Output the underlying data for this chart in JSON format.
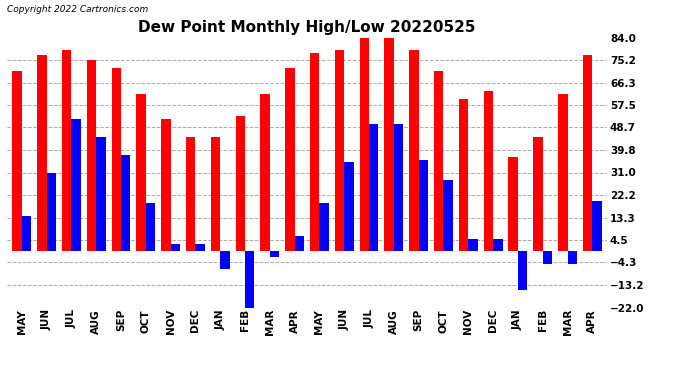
{
  "title": "Dew Point Monthly High/Low 20220525",
  "copyright": "Copyright 2022 Cartronics.com",
  "months": [
    "MAY",
    "JUN",
    "JUL",
    "AUG",
    "SEP",
    "OCT",
    "NOV",
    "DEC",
    "JAN",
    "FEB",
    "MAR",
    "APR",
    "MAY",
    "JUN",
    "JUL",
    "AUG",
    "SEP",
    "OCT",
    "NOV",
    "DEC",
    "JAN",
    "FEB",
    "MAR",
    "APR"
  ],
  "high": [
    71.0,
    77.0,
    79.0,
    75.0,
    72.0,
    62.0,
    52.0,
    45.0,
    45.0,
    53.0,
    62.0,
    72.0,
    78.0,
    79.0,
    84.0,
    84.0,
    79.0,
    71.0,
    60.0,
    63.0,
    37.0,
    45.0,
    62.0,
    77.0
  ],
  "low": [
    14.0,
    31.0,
    52.0,
    45.0,
    38.0,
    19.0,
    3.0,
    3.0,
    -7.0,
    -22.0,
    -2.0,
    6.0,
    19.0,
    35.0,
    50.0,
    50.0,
    36.0,
    28.0,
    5.0,
    5.0,
    -15.0,
    -5.0,
    -5.0,
    20.0
  ],
  "yticks": [
    84.0,
    75.2,
    66.3,
    57.5,
    48.7,
    39.8,
    31.0,
    22.2,
    13.3,
    4.5,
    -4.3,
    -13.2,
    -22.0
  ],
  "ymin": -22.0,
  "ymax": 84.0,
  "high_color": "#FF0000",
  "low_color": "#0000FF",
  "background_color": "#FFFFFF",
  "grid_color": "#AAAAAA",
  "title_fontsize": 11,
  "label_fontsize": 8,
  "tick_fontsize": 7.5,
  "copyright_fontsize": 6.5
}
